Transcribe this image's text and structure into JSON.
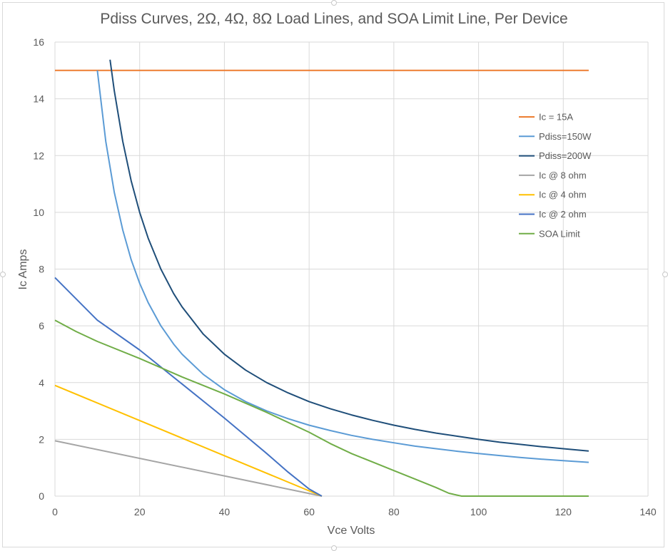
{
  "chart_data": {
    "type": "line",
    "title": "Pdiss Curves, 2Ω, 4Ω, 8Ω Load Lines, and SOA Limit Line, Per Device",
    "xlabel": "Vce Volts",
    "ylabel": "Ic Amps",
    "xlim": [
      0,
      140
    ],
    "ylim": [
      0,
      16
    ],
    "xticks": [
      0,
      20,
      40,
      60,
      80,
      100,
      120,
      140
    ],
    "yticks": [
      0,
      2,
      4,
      6,
      8,
      10,
      12,
      14,
      16
    ],
    "grid": true,
    "legend_position": "right",
    "series": [
      {
        "name": "Ic = 15A",
        "color": "#ED7D31",
        "x": [
          0,
          126
        ],
        "y": [
          15,
          15
        ]
      },
      {
        "name": "Pdiss=150W",
        "color": "#5B9BD5",
        "x": [
          10,
          12,
          14,
          16,
          18,
          20,
          22,
          25,
          28,
          30,
          35,
          40,
          45,
          50,
          55,
          60,
          65,
          70,
          75,
          80,
          85,
          90,
          95,
          100,
          105,
          110,
          115,
          120,
          126
        ],
        "y": [
          15,
          12.5,
          10.71,
          9.38,
          8.33,
          7.5,
          6.82,
          6.0,
          5.36,
          5.0,
          4.29,
          3.75,
          3.33,
          3.0,
          2.73,
          2.5,
          2.31,
          2.14,
          2.0,
          1.88,
          1.76,
          1.67,
          1.58,
          1.5,
          1.43,
          1.36,
          1.3,
          1.25,
          1.19
        ]
      },
      {
        "name": "Pdiss=200W",
        "color": "#1F4E79",
        "x": [
          13,
          14,
          16,
          18,
          20,
          22,
          25,
          28,
          30,
          35,
          40,
          45,
          50,
          55,
          60,
          65,
          70,
          75,
          80,
          85,
          90,
          95,
          100,
          105,
          110,
          115,
          120,
          126
        ],
        "y": [
          15.38,
          14.29,
          12.5,
          11.11,
          10.0,
          9.09,
          8.0,
          7.14,
          6.67,
          5.71,
          5.0,
          4.44,
          4.0,
          3.64,
          3.33,
          3.08,
          2.86,
          2.67,
          2.5,
          2.35,
          2.22,
          2.11,
          2.0,
          1.9,
          1.82,
          1.74,
          1.67,
          1.59
        ]
      },
      {
        "name": "Ic @ 8 ohm",
        "color": "#A5A5A5",
        "x": [
          0,
          63
        ],
        "y": [
          1.95,
          0
        ]
      },
      {
        "name": "Ic @ 4 ohm",
        "color": "#FFC000",
        "x": [
          0,
          63
        ],
        "y": [
          3.9,
          0
        ]
      },
      {
        "name": "Ic @ 2 ohm",
        "color": "#4472C4",
        "x": [
          0,
          10,
          20,
          30,
          40,
          50,
          55,
          60,
          63
        ],
        "y": [
          7.7,
          6.2,
          5.15,
          3.95,
          2.75,
          1.5,
          0.85,
          0.25,
          0
        ]
      },
      {
        "name": "SOA Limit",
        "color": "#70AD47",
        "x": [
          0,
          5,
          10,
          20,
          30,
          40,
          50,
          60,
          65,
          70,
          75,
          80,
          85,
          90,
          93,
          96,
          100,
          110,
          120,
          126
        ],
        "y": [
          6.2,
          5.8,
          5.45,
          4.85,
          4.2,
          3.6,
          2.95,
          2.25,
          1.85,
          1.5,
          1.2,
          0.9,
          0.6,
          0.3,
          0.1,
          0,
          0,
          0,
          0,
          0
        ]
      }
    ]
  }
}
